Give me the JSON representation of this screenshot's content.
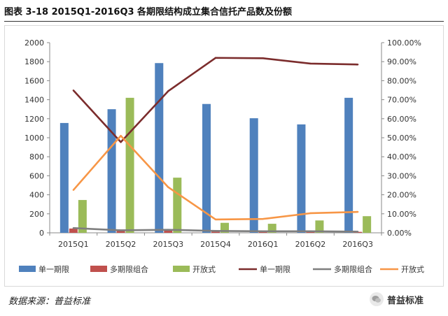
{
  "header": {
    "title": "图表 3-18 2015Q1-2016Q3 各期限结构成立集合信托产品数及份额"
  },
  "chart_data": {
    "type": "bar",
    "categories": [
      "2015Q1",
      "2015Q2",
      "2015Q3",
      "2015Q4",
      "2016Q1",
      "2016Q2",
      "2016Q3"
    ],
    "left_axis": {
      "ylim": [
        0,
        2000
      ],
      "ticks": [
        "0",
        "200",
        "400",
        "600",
        "800",
        "1000",
        "1200",
        "1400",
        "1600",
        "1800",
        "2000"
      ]
    },
    "right_axis": {
      "ylim": [
        0,
        100
      ],
      "ticks": [
        "0.00%",
        "10.00%",
        "20.00%",
        "30.00%",
        "40.00%",
        "50.00%",
        "60.00%",
        "70.00%",
        "80.00%",
        "90.00%",
        "100.00%"
      ]
    },
    "bar_series": [
      {
        "name": "单一期限",
        "color": "#4f81bd",
        "values": [
          1155,
          1300,
          1785,
          1355,
          1205,
          1140,
          1420
        ]
      },
      {
        "name": "多期限组合",
        "color": "#c0504d",
        "values": [
          45,
          35,
          35,
          25,
          15,
          15,
          10
        ]
      },
      {
        "name": "开放式",
        "color": "#9bbb59",
        "values": [
          345,
          1420,
          580,
          105,
          95,
          130,
          175
        ]
      }
    ],
    "line_series": [
      {
        "name": "单一期限",
        "color": "#7b2c2c",
        "values": [
          74.9,
          47.7,
          74.5,
          92.0,
          91.8,
          89.0,
          88.5
        ]
      },
      {
        "name": "多期限组合",
        "color": "#7f7f7f",
        "values": [
          2.5,
          1.3,
          1.6,
          1.0,
          0.8,
          0.8,
          0.6
        ]
      },
      {
        "name": "开放式",
        "color": "#f79646",
        "values": [
          22.5,
          51.0,
          24.0,
          7.0,
          7.3,
          10.3,
          11.0
        ]
      }
    ],
    "legend_position": "bottom",
    "grid": false
  },
  "footer": {
    "source": "数据来源：普益标准"
  },
  "brand": {
    "name": "普益标准",
    "icon": "wechat-icon"
  }
}
